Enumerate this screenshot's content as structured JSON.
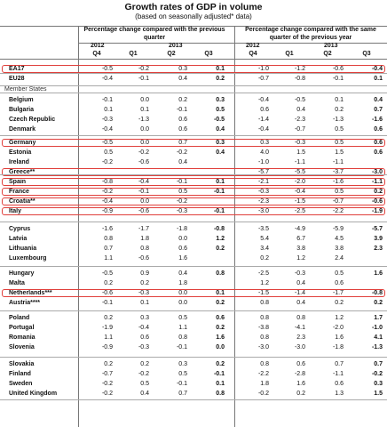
{
  "title": "Growth rates of GDP in volume",
  "subtitle": "(based on seasonally adjusted* data)",
  "header_quarter": "Percentage change compared with the previous quarter",
  "header_year": "Percentage change compared with the same quarter of the previous year",
  "years": [
    "2012",
    "2013",
    "2012",
    "2013"
  ],
  "quarters": [
    "Q4",
    "Q1",
    "Q2",
    "Q3",
    "Q4",
    "Q1",
    "Q2",
    "Q3"
  ],
  "member_states_label": "Member States",
  "rows": [
    {
      "label": "EA17",
      "v": [
        "-0.5",
        "-0.2",
        "0.3",
        "0.1",
        "-1.0",
        "-1.2",
        "-0.6",
        "-0.4"
      ]
    },
    {
      "label": "EU28",
      "v": [
        "-0.4",
        "-0.1",
        "0.4",
        "0.2",
        "-0.7",
        "-0.8",
        "-0.1",
        "0.1"
      ]
    },
    {
      "label": "Belgium",
      "v": [
        "-0.1",
        "0.0",
        "0.2",
        "0.3",
        "-0.4",
        "-0.5",
        "0.1",
        "0.4"
      ]
    },
    {
      "label": "Bulgaria",
      "v": [
        "0.1",
        "0.1",
        "-0.1",
        "0.5",
        "0.6",
        "0.4",
        "0.2",
        "0.7"
      ]
    },
    {
      "label": "Czech Republic",
      "v": [
        "-0.3",
        "-1.3",
        "0.6",
        "-0.5",
        "-1.4",
        "-2.3",
        "-1.3",
        "-1.6"
      ]
    },
    {
      "label": "Denmark",
      "v": [
        "-0.4",
        "0.0",
        "0.6",
        "0.4",
        "-0.4",
        "-0.7",
        "0.5",
        "0.6"
      ]
    },
    {
      "label": "Germany",
      "v": [
        "-0.5",
        "0.0",
        "0.7",
        "0.3",
        "0.3",
        "-0.3",
        "0.5",
        "0.6"
      ]
    },
    {
      "label": "Estonia",
      "v": [
        "0.5",
        "-0.2",
        "-0.2",
        "0.4",
        "4.0",
        "1.5",
        "1.5",
        "0.6"
      ]
    },
    {
      "label": "Ireland",
      "v": [
        "-0.2",
        "-0.6",
        "0.4",
        "",
        "-1.0",
        "-1.1",
        "-1.1",
        ""
      ]
    },
    {
      "label": "Greece**",
      "v": [
        "",
        "",
        "",
        "",
        "-5.7",
        "-5.5",
        "-3.7",
        "-3.0"
      ]
    },
    {
      "label": "Spain",
      "v": [
        "-0.8",
        "-0.4",
        "-0.1",
        "0.1",
        "-2.1",
        "-2.0",
        "-1.6",
        "-1.1"
      ]
    },
    {
      "label": "France",
      "v": [
        "-0.2",
        "-0.1",
        "0.5",
        "-0.1",
        "-0.3",
        "-0.4",
        "0.5",
        "0.2"
      ]
    },
    {
      "label": "Croatia**",
      "v": [
        "-0.4",
        "0.0",
        "-0.2",
        "",
        "-2.3",
        "-1.5",
        "-0.7",
        "-0.6"
      ]
    },
    {
      "label": "Italy",
      "v": [
        "-0.9",
        "-0.6",
        "-0.3",
        "-0.1",
        "-3.0",
        "-2.5",
        "-2.2",
        "-1.9"
      ]
    },
    {
      "label": "Cyprus",
      "v": [
        "-1.6",
        "-1.7",
        "-1.8",
        "-0.8",
        "-3.5",
        "-4.9",
        "-5.9",
        "-5.7"
      ]
    },
    {
      "label": "Latvia",
      "v": [
        "0.8",
        "1.8",
        "0.0",
        "1.2",
        "5.4",
        "6.7",
        "4.5",
        "3.9"
      ]
    },
    {
      "label": "Lithuania",
      "v": [
        "0.7",
        "0.8",
        "0.6",
        "0.2",
        "3.4",
        "3.8",
        "3.8",
        "2.3"
      ]
    },
    {
      "label": "Luxembourg",
      "v": [
        "1.1",
        "-0.6",
        "1.6",
        "",
        "0.2",
        "1.2",
        "2.4",
        ""
      ]
    },
    {
      "label": "Hungary",
      "v": [
        "-0.5",
        "0.9",
        "0.4",
        "0.8",
        "-2.5",
        "-0.3",
        "0.5",
        "1.6"
      ]
    },
    {
      "label": "Malta",
      "v": [
        "0.2",
        "0.2",
        "1.8",
        "",
        "1.2",
        "0.4",
        "0.6",
        ""
      ]
    },
    {
      "label": "Netherlands***",
      "v": [
        "-0.6",
        "-0.3",
        "0.0",
        "0.1",
        "-1.5",
        "-1.4",
        "-1.7",
        "-0.8"
      ]
    },
    {
      "label": "Austria****",
      "v": [
        "-0.1",
        "0.1",
        "0.0",
        "0.2",
        "0.8",
        "0.4",
        "0.2",
        "0.2"
      ]
    },
    {
      "label": "Poland",
      "v": [
        "0.2",
        "0.3",
        "0.5",
        "0.6",
        "0.8",
        "0.8",
        "1.2",
        "1.7"
      ]
    },
    {
      "label": "Portugal",
      "v": [
        "-1.9",
        "-0.4",
        "1.1",
        "0.2",
        "-3.8",
        "-4.1",
        "-2.0",
        "-1.0"
      ]
    },
    {
      "label": "Romania",
      "v": [
        "1.1",
        "0.6",
        "0.8",
        "1.6",
        "0.8",
        "2.3",
        "1.6",
        "4.1"
      ]
    },
    {
      "label": "Slovenia",
      "v": [
        "-0.9",
        "-0.3",
        "-0.1",
        "0.0",
        "-3.0",
        "-3.0",
        "-1.8",
        "-1.3"
      ]
    },
    {
      "label": "Slovakia",
      "v": [
        "0.2",
        "0.2",
        "0.3",
        "0.2",
        "0.8",
        "0.6",
        "0.7",
        "0.7"
      ]
    },
    {
      "label": "Finland",
      "v": [
        "-0.7",
        "-0.2",
        "0.5",
        "-0.1",
        "-2.2",
        "-2.8",
        "-1.1",
        "-0.2"
      ]
    },
    {
      "label": "Sweden",
      "v": [
        "-0.2",
        "0.5",
        "-0.1",
        "0.1",
        "1.8",
        "1.6",
        "0.6",
        "0.3"
      ]
    },
    {
      "label": "United Kingdom",
      "v": [
        "-0.2",
        "0.4",
        "0.7",
        "0.8",
        "-0.2",
        "0.2",
        "1.3",
        "1.5"
      ]
    }
  ],
  "highlight_color": "#e0403c"
}
